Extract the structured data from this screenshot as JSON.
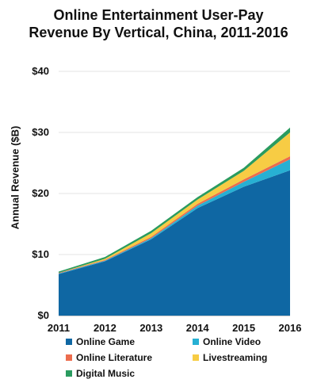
{
  "chart_data": {
    "type": "area",
    "stacked": true,
    "title_line1": "Online Entertainment User-Pay",
    "title_line2": "Revenue By Vertical, China, 2011-2016",
    "ylabel": "Annual Revenue ($B)",
    "xlabel": "",
    "x": [
      "2011",
      "2012",
      "2013",
      "2014",
      "2015",
      "2016"
    ],
    "y_ticks": [
      "$0",
      "$10",
      "$20",
      "$30",
      "$40"
    ],
    "ylim": [
      0,
      40
    ],
    "grid": true,
    "legend_position": "bottom",
    "series": [
      {
        "name": "Online Game",
        "color": "#0f67a3",
        "values": [
          6.8,
          8.9,
          12.5,
          17.6,
          21.1,
          23.8
        ]
      },
      {
        "name": "Online Video",
        "color": "#27b0d3",
        "values": [
          0.1,
          0.1,
          0.2,
          0.4,
          0.8,
          1.8
        ]
      },
      {
        "name": "Online Literature",
        "color": "#ec6d4e",
        "values": [
          0.1,
          0.1,
          0.2,
          0.3,
          0.4,
          0.5
        ]
      },
      {
        "name": "Livestreaming",
        "color": "#f7cc44",
        "values": [
          0.0,
          0.2,
          0.6,
          0.7,
          1.4,
          3.9
        ]
      },
      {
        "name": "Digital Music",
        "color": "#2a9b5f",
        "values": [
          0.2,
          0.3,
          0.4,
          0.4,
          0.5,
          0.8
        ]
      }
    ]
  }
}
